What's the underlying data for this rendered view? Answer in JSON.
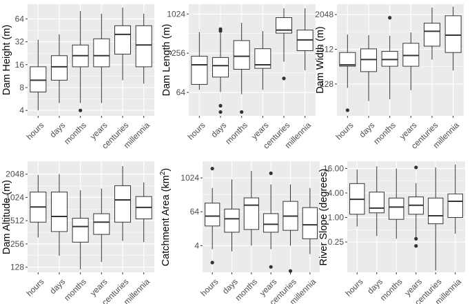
{
  "chart_data": [
    {
      "type": "box",
      "ylabel": "Dam Height (m)",
      "yscale": "log2",
      "ylim": [
        3.4,
        100
      ],
      "yticks": [
        4,
        8,
        16,
        32,
        64
      ],
      "ytick_labels": [
        "4",
        "8",
        "16",
        "32",
        "64"
      ],
      "categories": [
        "hours",
        "days",
        "months",
        "years",
        "centuries",
        "millennia"
      ],
      "boxes": [
        {
          "min": 4,
          "q1": 7,
          "median": 10,
          "q3": 15,
          "max": 34,
          "outliers": []
        },
        {
          "min": 5,
          "q1": 10,
          "median": 15,
          "q3": 21,
          "max": 40,
          "outliers": []
        },
        {
          "min": 5,
          "q1": 15,
          "median": 21,
          "q3": 29,
          "max": 81,
          "outliers": [
            4
          ]
        },
        {
          "min": 5,
          "q1": 15,
          "median": 21,
          "q3": 35,
          "max": 75,
          "outliers": []
        },
        {
          "min": 10,
          "q1": 22,
          "median": 40,
          "q3": 52,
          "max": 90,
          "outliers": []
        },
        {
          "min": 9,
          "q1": 15,
          "median": 29,
          "q3": 52,
          "max": 75,
          "outliers": []
        }
      ]
    },
    {
      "type": "box",
      "ylabel": "Dam Length (m)",
      "yscale": "log2",
      "ylim": [
        28,
        1450
      ],
      "yticks": [
        64,
        256,
        1024
      ],
      "ytick_labels": [
        "64",
        "256",
        "1024"
      ],
      "categories": [
        "hours",
        "days",
        "months",
        "years",
        "centuries",
        "millennia"
      ],
      "boxes": [
        {
          "min": 70,
          "q1": 85,
          "median": 170,
          "q3": 230,
          "max": 540,
          "outliers": []
        },
        {
          "min": 65,
          "q1": 110,
          "median": 165,
          "q3": 220,
          "max": 520,
          "outliers": [
            32,
            40,
            560,
            600
          ]
        },
        {
          "min": 60,
          "q1": 145,
          "median": 230,
          "q3": 400,
          "max": 750,
          "outliers": [
            32
          ]
        },
        {
          "min": 70,
          "q1": 150,
          "median": 170,
          "q3": 300,
          "max": 560,
          "outliers": []
        },
        {
          "min": 190,
          "q1": 520,
          "median": 580,
          "q3": 900,
          "max": 1250,
          "outliers": [
            105
          ]
        },
        {
          "min": 140,
          "q1": 280,
          "median": 410,
          "q3": 580,
          "max": 1250,
          "outliers": []
        }
      ]
    },
    {
      "type": "box",
      "ylabel": "Dam Width (m)",
      "yscale": "log2",
      "ylim": [
        36,
        3100
      ],
      "yticks": [
        128,
        512,
        2048
      ],
      "ytick_labels": [
        "128",
        "512",
        "2048"
      ],
      "categories": [
        "hours",
        "days",
        "months",
        "years",
        "centuries",
        "millennia"
      ],
      "boxes": [
        {
          "min": 110,
          "q1": 260,
          "median": 275,
          "q3": 450,
          "max": 920,
          "outliers": [
            45
          ]
        },
        {
          "min": 65,
          "q1": 210,
          "median": 340,
          "q3": 520,
          "max": 900,
          "outliers": []
        },
        {
          "min": 70,
          "q1": 260,
          "median": 340,
          "q3": 470,
          "max": 880,
          "outliers": [
            1800
          ]
        },
        {
          "min": 100,
          "q1": 260,
          "median": 400,
          "q3": 650,
          "max": 1000,
          "outliers": []
        },
        {
          "min": 340,
          "q1": 580,
          "median": 1050,
          "q3": 1450,
          "max": 2700,
          "outliers": []
        },
        {
          "min": 220,
          "q1": 450,
          "median": 900,
          "q3": 1950,
          "max": 2800,
          "outliers": []
        }
      ]
    },
    {
      "type": "box",
      "ylabel": "Dam Altitude (m)",
      "yscale": "log2",
      "ylim": [
        110,
        3000
      ],
      "yticks": [
        128,
        256,
        512,
        1024,
        2048
      ],
      "ytick_labels": [
        "128",
        "256",
        "512",
        "1024",
        "2048"
      ],
      "categories": [
        "hours",
        "days",
        "months",
        "years",
        "centuries",
        "millennia"
      ],
      "boxes": [
        {
          "min": 310,
          "q1": 490,
          "median": 770,
          "q3": 1200,
          "max": 2000,
          "outliers": []
        },
        {
          "min": 180,
          "q1": 370,
          "median": 580,
          "q3": 1200,
          "max": 2050,
          "outliers": []
        },
        {
          "min": 120,
          "q1": 270,
          "median": 430,
          "q3": 550,
          "max": 1270,
          "outliers": []
        },
        {
          "min": 150,
          "q1": 340,
          "median": 490,
          "q3": 630,
          "max": 1330,
          "outliers": []
        },
        {
          "min": 280,
          "q1": 490,
          "median": 950,
          "q3": 1450,
          "max": 2600,
          "outliers": []
        },
        {
          "min": 270,
          "q1": 540,
          "median": 760,
          "q3": 1050,
          "max": 1600,
          "outliers": []
        }
      ]
    },
    {
      "type": "box",
      "ylabel": "Catchment Area (km²)",
      "ylabel_main": "Catchment Area (km",
      "ylabel_sup": "2",
      "ylabel_end": ")",
      "yscale": "log2",
      "ylim": [
        0.45,
        4000
      ],
      "yticks": [
        4,
        64,
        1024
      ],
      "ytick_labels": [
        "4",
        "64",
        "1024"
      ],
      "categories": [
        "hours",
        "days",
        "months",
        "years",
        "centuries",
        "millennia"
      ],
      "boxes": [
        {
          "min": 3,
          "q1": 20,
          "median": 45,
          "q3": 130,
          "max": 450,
          "outliers": [
            1,
            2200
          ]
        },
        {
          "min": 2.5,
          "q1": 12,
          "median": 36,
          "q3": 80,
          "max": 900,
          "outliers": []
        },
        {
          "min": 4,
          "q1": 15,
          "median": 110,
          "q3": 200,
          "max": 1800,
          "outliers": []
        },
        {
          "min": 3,
          "q1": 12,
          "median": 23,
          "q3": 55,
          "max": 600,
          "outliers": [
            0.7,
            1500
          ]
        },
        {
          "min": 4,
          "q1": 14,
          "median": 45,
          "q3": 150,
          "max": 600,
          "outliers": [
            0.5
          ]
        },
        {
          "min": 2,
          "q1": 7,
          "median": 22,
          "q3": 90,
          "max": 450,
          "outliers": []
        }
      ]
    },
    {
      "type": "box",
      "ylabel": "River Slope (degrees)",
      "yscale": "log2",
      "ylim": [
        0.045,
        24
      ],
      "yticks": [
        0.25,
        1,
        4,
        16
      ],
      "ytick_labels": [
        "0.25",
        "1.00",
        "4.00",
        "16.00"
      ],
      "categories": [
        "hours",
        "days",
        "months",
        "years",
        "centuries",
        "millennia"
      ],
      "boxes": [
        {
          "min": 0.6,
          "q1": 1.2,
          "median": 2.8,
          "q3": 6.8,
          "max": 15,
          "outliers": []
        },
        {
          "min": 0.35,
          "q1": 1.3,
          "median": 1.7,
          "q3": 4.2,
          "max": 18,
          "outliers": []
        },
        {
          "min": 0.3,
          "q1": 0.9,
          "median": 1.8,
          "q3": 3.0,
          "max": 16,
          "outliers": []
        },
        {
          "min": 0.3,
          "q1": 1.2,
          "median": 2.0,
          "q3": 3.2,
          "max": 7,
          "outliers": [
            0.2,
            0.3,
            17
          ]
        },
        {
          "min": 0.05,
          "q1": 0.7,
          "median": 1.1,
          "q3": 3.0,
          "max": 17,
          "outliers": []
        },
        {
          "min": 0.4,
          "q1": 1.0,
          "median": 2.5,
          "q3": 3.8,
          "max": 20,
          "outliers": []
        }
      ]
    }
  ]
}
